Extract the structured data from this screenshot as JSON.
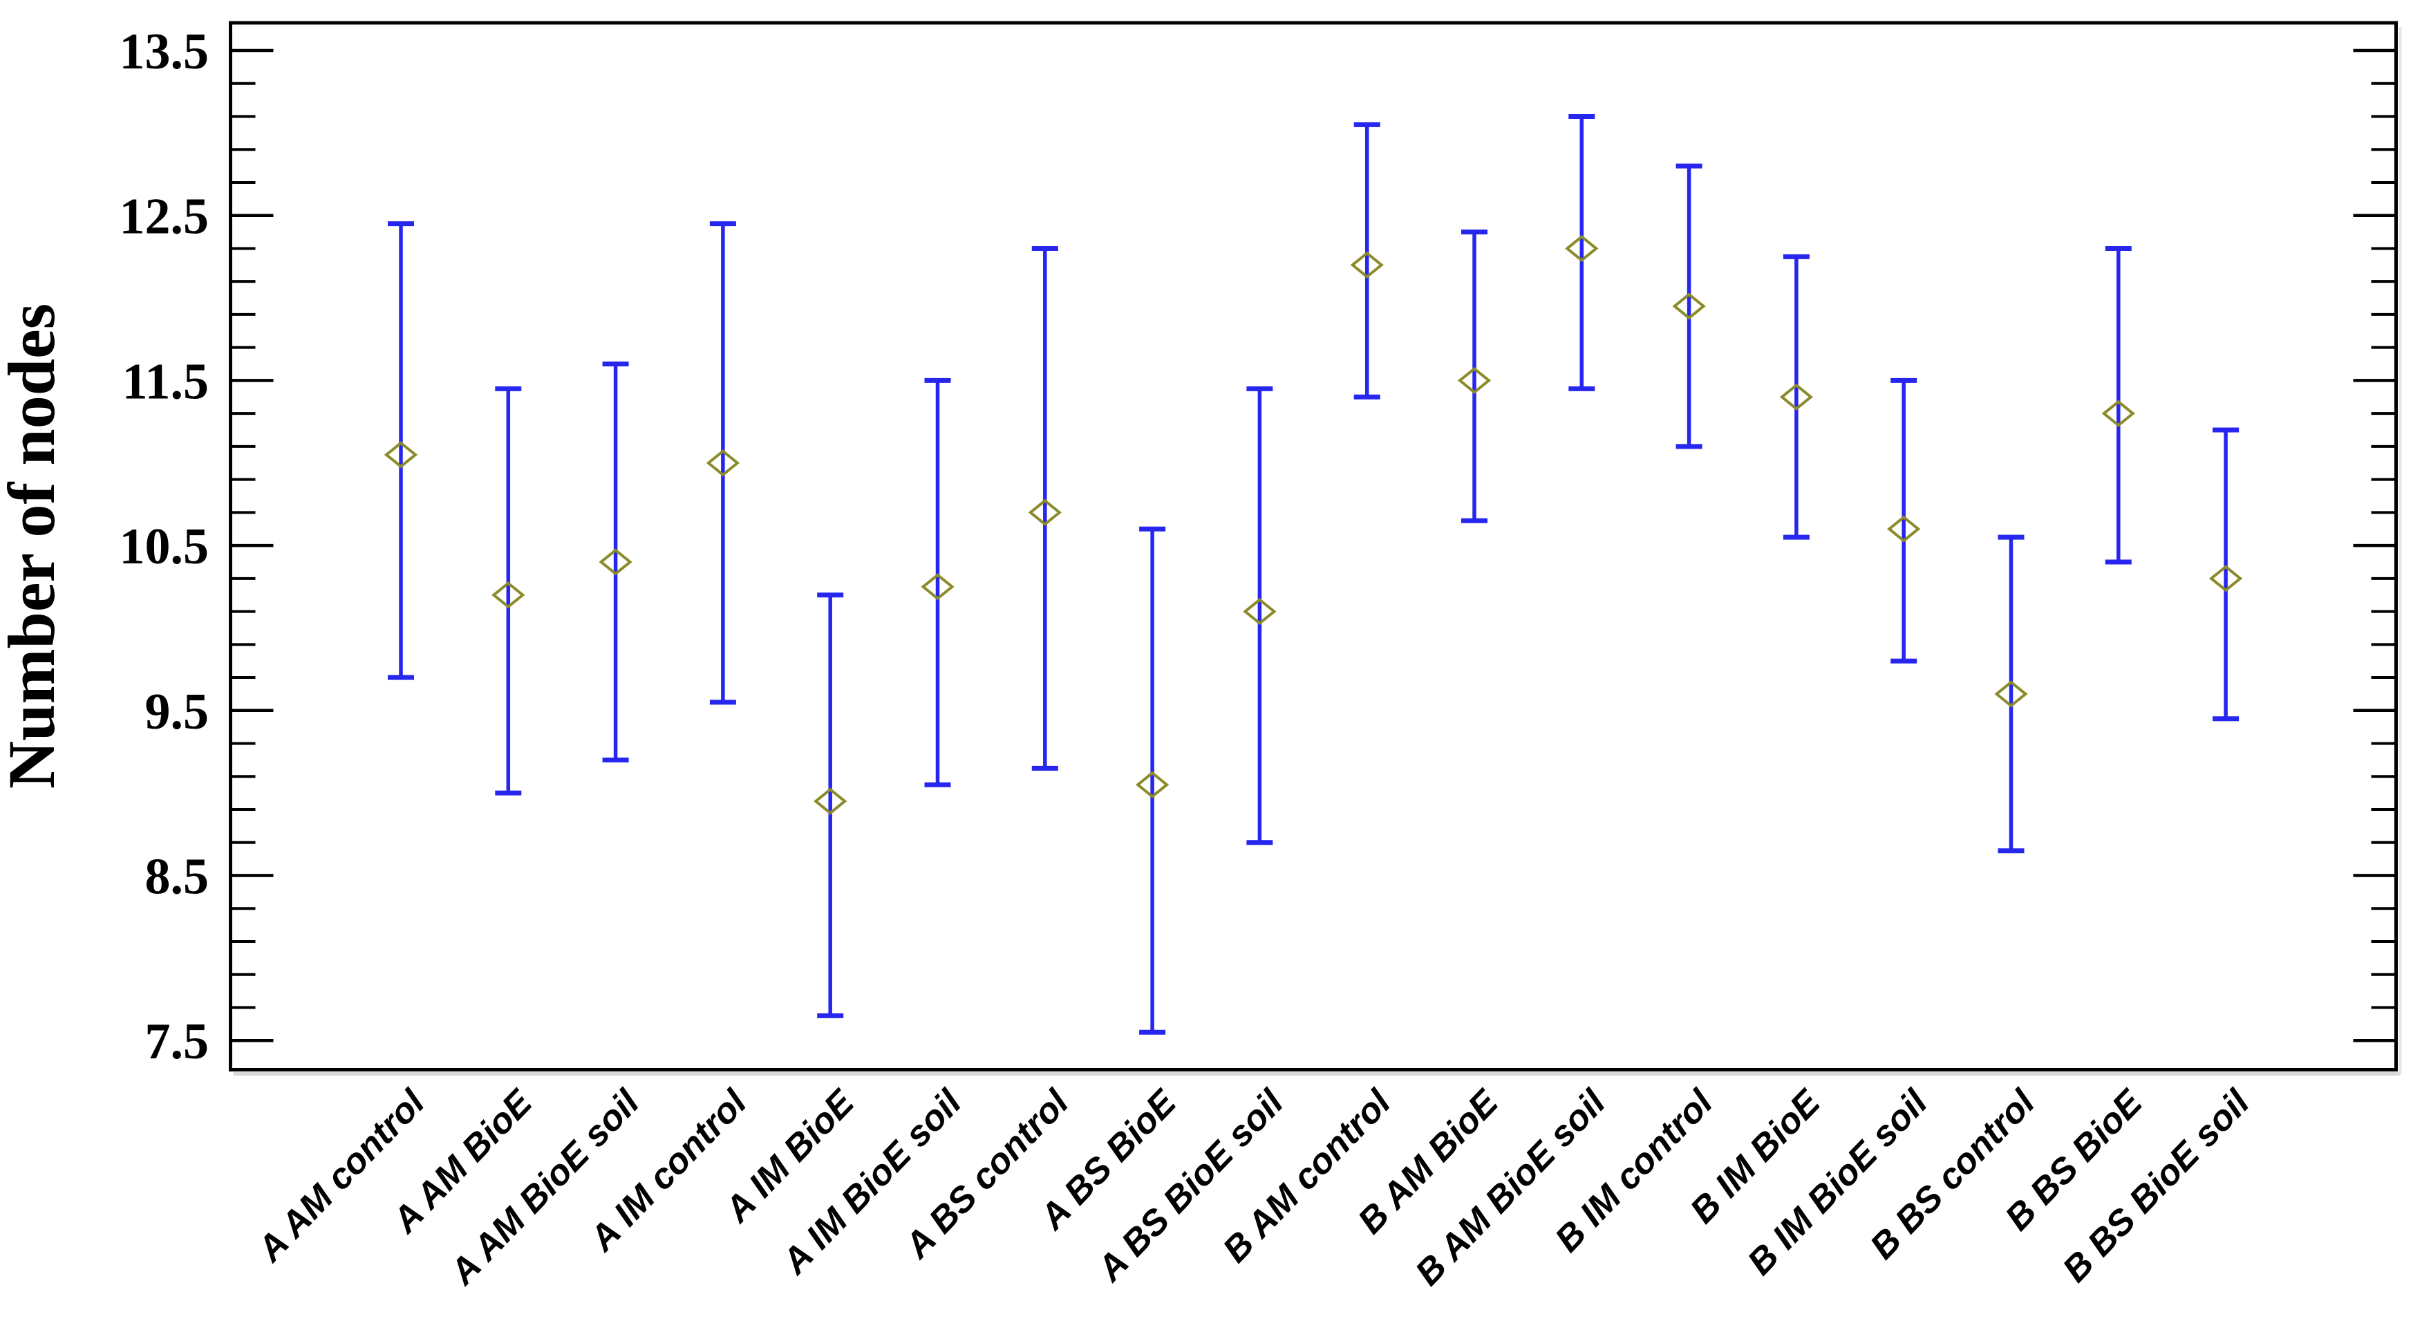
{
  "page": {
    "background": "#ffffff",
    "description": "Means plot with error bars: number of nodes per treatment group"
  },
  "chart_data": {
    "type": "scatter",
    "subtype": "means-with-error-bars",
    "title": "",
    "xlabel": "",
    "ylabel": "Number of nodes",
    "ylim": [
      7.32,
      13.67
    ],
    "yticks_major": [
      7.5,
      8.5,
      9.5,
      10.5,
      11.5,
      12.5,
      13.5
    ],
    "ytick_labels": [
      "7.5",
      "8.5",
      "9.5",
      "10.5",
      "11.5",
      "12.5",
      "13.5"
    ],
    "minor_tick_step": 0.2,
    "grid": "off",
    "legend": "none",
    "marker": "open-diamond",
    "categories": [
      "A AM control",
      "A AM BioE",
      "A AM BioE soil",
      "A IM control",
      "A IM BioE",
      "A IM BioE soil",
      "A BS control",
      "A BS BioE",
      "A BS BioE soil",
      "B AM control",
      "B AM BioE",
      "B AM BioE soil",
      "B IM control",
      "B IM BioE",
      "B IM BioE soil",
      "B BS control",
      "B BS BioE",
      "B BS BioE soil"
    ],
    "points": [
      {
        "label": "A AM control",
        "mean": 11.05,
        "low": 9.7,
        "high": 12.45
      },
      {
        "label": "A AM BioE",
        "mean": 10.2,
        "low": 9.0,
        "high": 11.45
      },
      {
        "label": "A AM BioE soil",
        "mean": 10.4,
        "low": 9.2,
        "high": 11.6
      },
      {
        "label": "A IM control",
        "mean": 11.0,
        "low": 9.55,
        "high": 12.45
      },
      {
        "label": "A IM BioE",
        "mean": 8.95,
        "low": 7.65,
        "high": 10.2
      },
      {
        "label": "A IM BioE soil",
        "mean": 10.25,
        "low": 9.05,
        "high": 11.5
      },
      {
        "label": "A BS control",
        "mean": 10.7,
        "low": 9.15,
        "high": 12.3
      },
      {
        "label": "A BS BioE",
        "mean": 9.05,
        "low": 7.55,
        "high": 10.6
      },
      {
        "label": "A BS BioE soil",
        "mean": 10.1,
        "low": 8.7,
        "high": 11.45
      },
      {
        "label": "B AM control",
        "mean": 12.2,
        "low": 11.4,
        "high": 13.05
      },
      {
        "label": "B AM BioE",
        "mean": 11.5,
        "low": 10.65,
        "high": 12.4
      },
      {
        "label": "B AM BioE soil",
        "mean": 12.3,
        "low": 11.45,
        "high": 13.1
      },
      {
        "label": "B IM control",
        "mean": 11.95,
        "low": 11.1,
        "high": 12.8
      },
      {
        "label": "B IM BioE",
        "mean": 11.4,
        "low": 10.55,
        "high": 12.25
      },
      {
        "label": "B IM BioE soil",
        "mean": 10.6,
        "low": 9.8,
        "high": 11.5
      },
      {
        "label": "B BS control",
        "mean": 9.6,
        "low": 8.65,
        "high": 10.55
      },
      {
        "label": "B BS BioE",
        "mean": 11.3,
        "low": 10.4,
        "high": 12.3
      },
      {
        "label": "B BS BioE soil",
        "mean": 10.3,
        "low": 9.45,
        "high": 11.2
      }
    ],
    "colors": {
      "error_bar": "#2626ee",
      "marker_outline": "#8b8b2b",
      "axis": "#000000",
      "text": "#000000",
      "background": "#ffffff"
    }
  }
}
